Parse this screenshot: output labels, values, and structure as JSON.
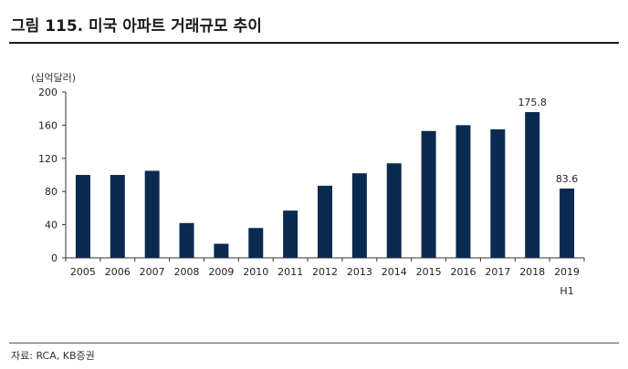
{
  "figure": {
    "title": "그림 115.  미국 아파트 거래규모 추이",
    "unit": "(십억달러)",
    "source": "자료: RCA, KB증권"
  },
  "chart_data": {
    "type": "bar",
    "categories": [
      "2005",
      "2006",
      "2007",
      "2008",
      "2009",
      "2010",
      "2011",
      "2012",
      "2013",
      "2014",
      "2015",
      "2016",
      "2017",
      "2018",
      "2019\nH1"
    ],
    "values": [
      100,
      100,
      105,
      42,
      17,
      36,
      57,
      87,
      102,
      114,
      153,
      160,
      155,
      175.8,
      83.6
    ],
    "data_labels": [
      {
        "index": 13,
        "text": "175.8"
      },
      {
        "index": 14,
        "text": "83.6"
      }
    ],
    "yticks": [
      0,
      40,
      80,
      120,
      160,
      200
    ],
    "ylim": [
      0,
      200
    ],
    "ylabel": "(십억달러)",
    "xlabel": "",
    "bar_color": "#0b2a4f",
    "grid": false,
    "legend": "none"
  }
}
